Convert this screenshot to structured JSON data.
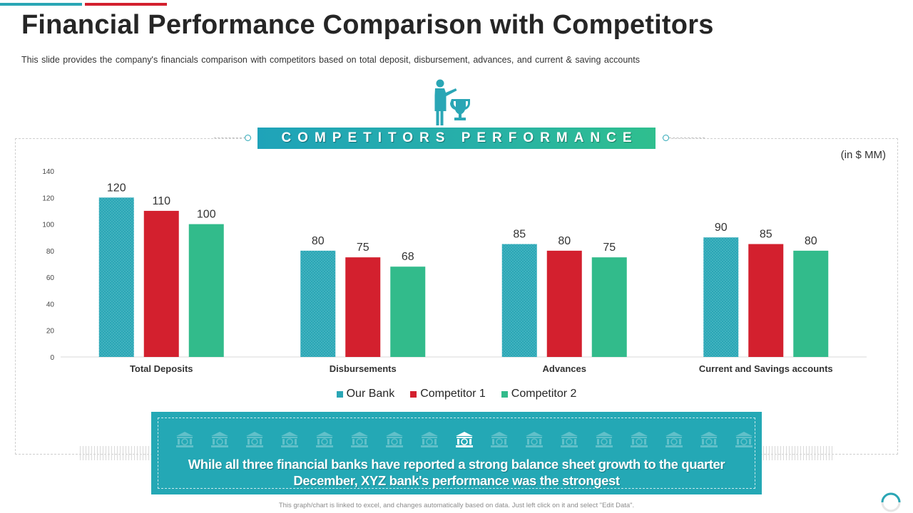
{
  "page": {
    "title": "Financial Performance Comparison with Competitors",
    "subtitle": "This slide provides  the company's financials comparison with competitors based on total deposit, disbursement, advances,  and current & saving accounts",
    "banner": "COMPETITORS PERFORMANCE",
    "unit_label": "(in $ MM)",
    "callout": {
      "line1": "While all three financial banks have reported a strong balance sheet growth to the quarter",
      "line2": "December, XYZ bank's performance was the strongest"
    },
    "footnote": "This graph/chart is linked to excel, and changes automatically based on data. Just left click on it and select \"Edit Data\".",
    "icons": {
      "header": "presenter-trophy-icon",
      "callout_row": "bank-icon",
      "highlighted": "bank-dollar-icon",
      "corner": "loading-ring-icon"
    }
  },
  "colors": {
    "accent_teal": "#2aa6b5",
    "accent_red": "#d3202e",
    "accent_green": "#32bb8b",
    "callout_bg": "#24a8b5"
  },
  "chart_data": {
    "type": "bar",
    "categories": [
      "Total Deposits",
      "Disbursements",
      "Advances",
      "Current and Savings accounts"
    ],
    "series": [
      {
        "name": "Our Bank",
        "values": [
          120,
          80,
          85,
          90
        ],
        "color": "#2aa6b5"
      },
      {
        "name": "Competitor 1",
        "values": [
          110,
          75,
          80,
          85
        ],
        "color": "#d3202e"
      },
      {
        "name": "Competitor 2",
        "values": [
          100,
          68,
          75,
          80
        ],
        "color": "#32bb8b"
      }
    ],
    "ylim": [
      0,
      140
    ],
    "yticks": [
      0,
      20,
      40,
      60,
      80,
      100,
      120,
      140
    ],
    "grid": false,
    "legend": "bottom",
    "data_labels": true
  }
}
